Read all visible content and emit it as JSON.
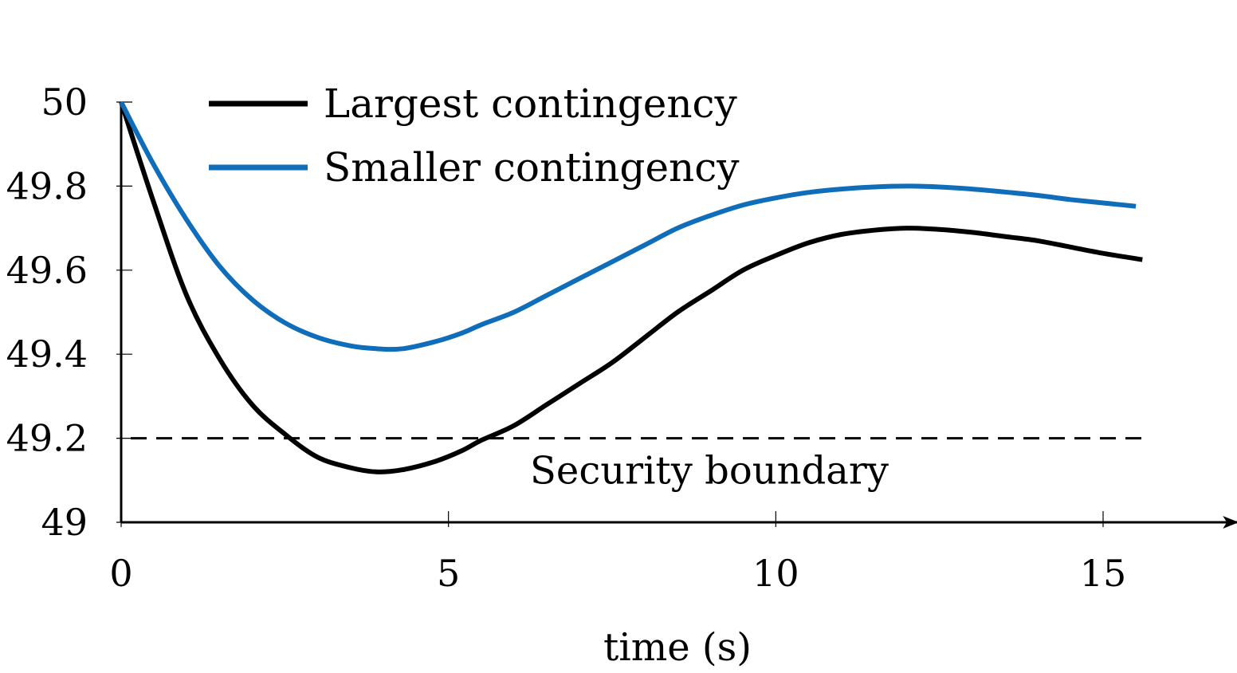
{
  "chart_data": {
    "type": "line",
    "title": "",
    "xlabel": "time (s)",
    "ylabel": "",
    "xlim": [
      0,
      17
    ],
    "ylim": [
      49,
      50
    ],
    "x_ticks": [
      0,
      5,
      10,
      15
    ],
    "x_tick_labels": [
      "0",
      "5",
      "10",
      "15"
    ],
    "y_ticks": [
      49,
      49.2,
      49.4,
      49.6,
      49.8,
      50
    ],
    "y_tick_labels": [
      "49",
      "49.2",
      "49.4",
      "49.6",
      "49.8",
      "50"
    ],
    "grid": false,
    "legend": {
      "position": "top-left"
    },
    "series": [
      {
        "name": "Largest contingency",
        "color": "#000000",
        "x": [
          0,
          0.5,
          1,
          1.5,
          2,
          2.5,
          3,
          3.5,
          3.9,
          4.3,
          4.8,
          5.2,
          5.5,
          6,
          6.5,
          7,
          7.5,
          8,
          8.5,
          9,
          9.5,
          10,
          10.5,
          11,
          11.5,
          12,
          12.5,
          13,
          13.5,
          14,
          14.5,
          15,
          15.6
        ],
        "values": [
          50.0,
          49.76,
          49.54,
          49.39,
          49.28,
          49.21,
          49.155,
          49.13,
          49.12,
          49.125,
          49.145,
          49.17,
          49.195,
          49.23,
          49.28,
          49.33,
          49.38,
          49.44,
          49.5,
          49.55,
          49.6,
          49.635,
          49.665,
          49.685,
          49.695,
          49.7,
          49.697,
          49.69,
          49.68,
          49.67,
          49.655,
          49.64,
          49.625
        ]
      },
      {
        "name": "Smaller contingency",
        "color": "#0f6dba",
        "x": [
          0,
          0.5,
          1,
          1.5,
          2,
          2.5,
          3,
          3.5,
          3.9,
          4.3,
          4.8,
          5.2,
          5.5,
          6,
          6.5,
          7,
          7.5,
          8,
          8.5,
          9,
          9.5,
          10,
          10.5,
          11,
          11.5,
          12,
          12.5,
          13,
          13.5,
          14,
          14.5,
          15,
          15.5
        ],
        "values": [
          50.0,
          49.85,
          49.72,
          49.61,
          49.53,
          49.475,
          49.44,
          49.42,
          49.413,
          49.413,
          49.43,
          49.45,
          49.47,
          49.5,
          49.54,
          49.58,
          49.62,
          49.66,
          49.7,
          49.73,
          49.755,
          49.772,
          49.785,
          49.793,
          49.798,
          49.8,
          49.798,
          49.793,
          49.786,
          49.778,
          49.768,
          49.76,
          49.752
        ]
      }
    ],
    "annotations": [
      {
        "type": "hline",
        "y": 49.2,
        "style": "dashed",
        "label": "Security boundary"
      }
    ]
  }
}
